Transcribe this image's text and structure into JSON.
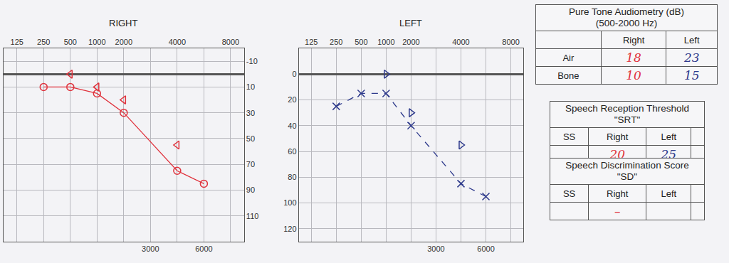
{
  "chart_data": [
    {
      "type": "line",
      "title": "RIGHT",
      "categories": [
        125,
        250,
        500,
        1000,
        2000,
        3000,
        4000,
        6000,
        8000
      ],
      "xticks": [
        125,
        250,
        500,
        1000,
        2000,
        4000,
        8000
      ],
      "x2ticks": [
        3000,
        6000
      ],
      "ylim": [
        130,
        -20
      ],
      "yticks": [
        -10,
        10,
        30,
        50,
        70,
        90,
        110
      ],
      "grid": true,
      "series": [
        {
          "type": "line",
          "color": "#e0323c",
          "marker": "circle",
          "line_style": "solid",
          "x": [
            250,
            500,
            1000,
            2000,
            4000,
            6000
          ],
          "values": [
            10,
            10,
            15,
            30,
            75,
            85
          ]
        },
        {
          "type": "scatter",
          "color": "#e0323c",
          "marker": "left-angle",
          "x": [
            500,
            1000,
            2000,
            4000
          ],
          "values": [
            0,
            10,
            20,
            55
          ]
        }
      ]
    },
    {
      "type": "line",
      "title": "LEFT",
      "categories": [
        125,
        250,
        500,
        1000,
        2000,
        3000,
        4000,
        6000,
        8000
      ],
      "xticks": [
        125,
        250,
        500,
        1000,
        2000,
        4000,
        8000
      ],
      "x2ticks": [
        3000,
        6000
      ],
      "ylim": [
        130,
        -20
      ],
      "yticks": [
        0,
        20,
        40,
        60,
        80,
        100,
        120
      ],
      "grid": true,
      "series": [
        {
          "type": "line",
          "color": "#2e3a8c",
          "marker": "x",
          "line_style": "dashed",
          "x": [
            250,
            500,
            1000,
            2000,
            4000,
            6000
          ],
          "values": [
            25,
            15,
            15,
            40,
            85,
            95
          ]
        },
        {
          "type": "scatter",
          "color": "#2e3a8c",
          "marker": "right-angle",
          "x": [
            1000,
            2000,
            4000
          ],
          "values": [
            0,
            30,
            55
          ]
        }
      ]
    }
  ],
  "tables": [
    {
      "title": [
        "Pure Tone Audiometry (dB)",
        "(500-2000 Hz)"
      ],
      "columns": [
        null,
        "Right",
        "Left"
      ],
      "rows": [
        [
          "Air",
          18,
          23
        ],
        [
          "Bone",
          10,
          15
        ]
      ]
    },
    {
      "title": [
        "Speech Reception Threshold",
        "\"SRT\""
      ],
      "columns": [
        "SS",
        "Right",
        "Left",
        null
      ],
      "rows": [
        [
          null,
          20,
          25,
          null
        ]
      ]
    },
    {
      "title": [
        "Speech Discrimination Score",
        "\"SD\""
      ],
      "columns": [
        "SS",
        "Right",
        "Left",
        null
      ],
      "rows": [
        [
          null,
          "–",
          null,
          null
        ]
      ]
    }
  ]
}
